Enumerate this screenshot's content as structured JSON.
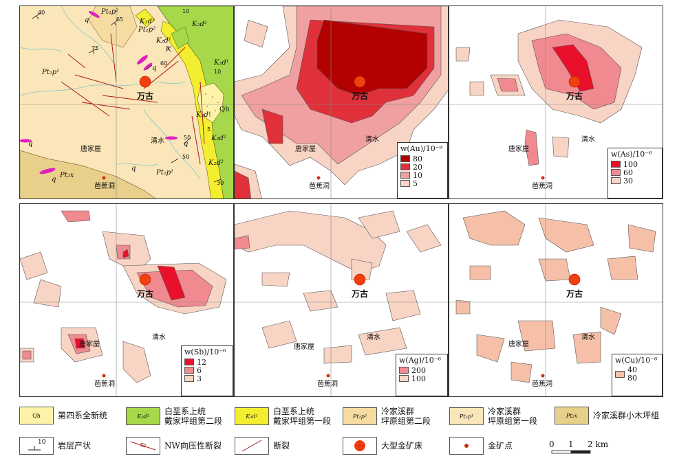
{
  "geology": {
    "formation_labels": [
      {
        "text": "Pt₂p²",
        "name": "pt2p2-top"
      },
      {
        "text": "Pt₂p²",
        "name": "pt2p2-upper"
      },
      {
        "text": "K₂d¹",
        "name": "k2d1-a"
      },
      {
        "text": "K₂d²",
        "name": "k2d2-a"
      },
      {
        "text": "K₂d¹",
        "name": "k2d1-b"
      },
      {
        "text": "K₂d¹",
        "name": "k2d1-c"
      },
      {
        "text": "Pt₂p¹",
        "name": "pt2p1-left"
      },
      {
        "text": "K₂d¹",
        "name": "k2d1-d"
      },
      {
        "text": "Qh",
        "name": "qh-label"
      },
      {
        "text": "K₂d²",
        "name": "k2d2-b"
      },
      {
        "text": "K₂d²",
        "name": "k2d2-c"
      },
      {
        "text": "Pt₂x",
        "name": "pt2x-label"
      },
      {
        "text": "Pt₂p¹",
        "name": "pt2p1-right"
      }
    ],
    "q_labels": [
      "q",
      "q",
      "q",
      "q",
      "q",
      "q"
    ],
    "dip_labels": [
      "40",
      "65",
      "10",
      "75",
      "8",
      "60",
      "10",
      "5",
      "50",
      "50",
      "30"
    ]
  },
  "places": {
    "mine": "万古",
    "tangjiawu": "唐家屋",
    "qingshui": "清水",
    "bajiaodong": "芭蕉洞"
  },
  "anomaly_panels": [
    {
      "element": "w(Au)/10⁻⁹",
      "levels": [
        "80",
        "20",
        "10",
        "5"
      ],
      "colors": [
        "#b30000",
        "#e0303a",
        "#f0a0a0",
        "#f8d4c4"
      ]
    },
    {
      "element": "w(As)/10⁻⁶",
      "levels": [
        "100",
        "60",
        "30"
      ],
      "colors": [
        "#e8102a",
        "#f08a90",
        "#f8d4c4"
      ]
    },
    {
      "element": "w(Sb)/10⁻⁶",
      "levels": [
        "12",
        "6",
        "3"
      ],
      "colors": [
        "#e8102a",
        "#f08a90",
        "#f8d4c4"
      ]
    },
    {
      "element": "w(Ag)/10⁻⁶",
      "levels": [
        "200",
        "100"
      ],
      "colors": [
        "#f08a90",
        "#f8d4c4"
      ]
    },
    {
      "element": "w(Cu)/10⁻⁶",
      "levels": [
        "40",
        "80"
      ],
      "colors": [
        "#f6c0a8"
      ]
    }
  ],
  "legend": {
    "items": [
      {
        "swatch": "Qh",
        "text": "第四系全新统",
        "color": "#fdf3a8"
      },
      {
        "swatch": "K₂d²",
        "text": "白垩系上统\n戴家坪组第二段",
        "color": "#a6d84a"
      },
      {
        "swatch": "K₂d¹",
        "text": "白垩系上统\n戴家坪组第一段",
        "color": "#f4ee30"
      },
      {
        "swatch": "Pt₂p²",
        "text": "冷家溪群\n坪原组第二段",
        "color": "#f6dca0"
      },
      {
        "swatch": "Pt₂p¹",
        "text": "冷家溪群\n坪原组第一段",
        "color": "#fae6b8"
      },
      {
        "swatch": "Pt₂x",
        "text": "冷家溪群小木坪组",
        "color": "#e8cf8a"
      },
      {
        "swatch": "10",
        "text": "岩层产状"
      },
      {
        "swatch": "",
        "text": "NW向压性断裂"
      },
      {
        "swatch": "",
        "text": "断裂"
      },
      {
        "swatch": "",
        "text": "大型金矿床"
      },
      {
        "swatch": "",
        "text": "金矿点"
      }
    ],
    "scale_ticks": [
      "0",
      "1",
      "2 km"
    ]
  }
}
